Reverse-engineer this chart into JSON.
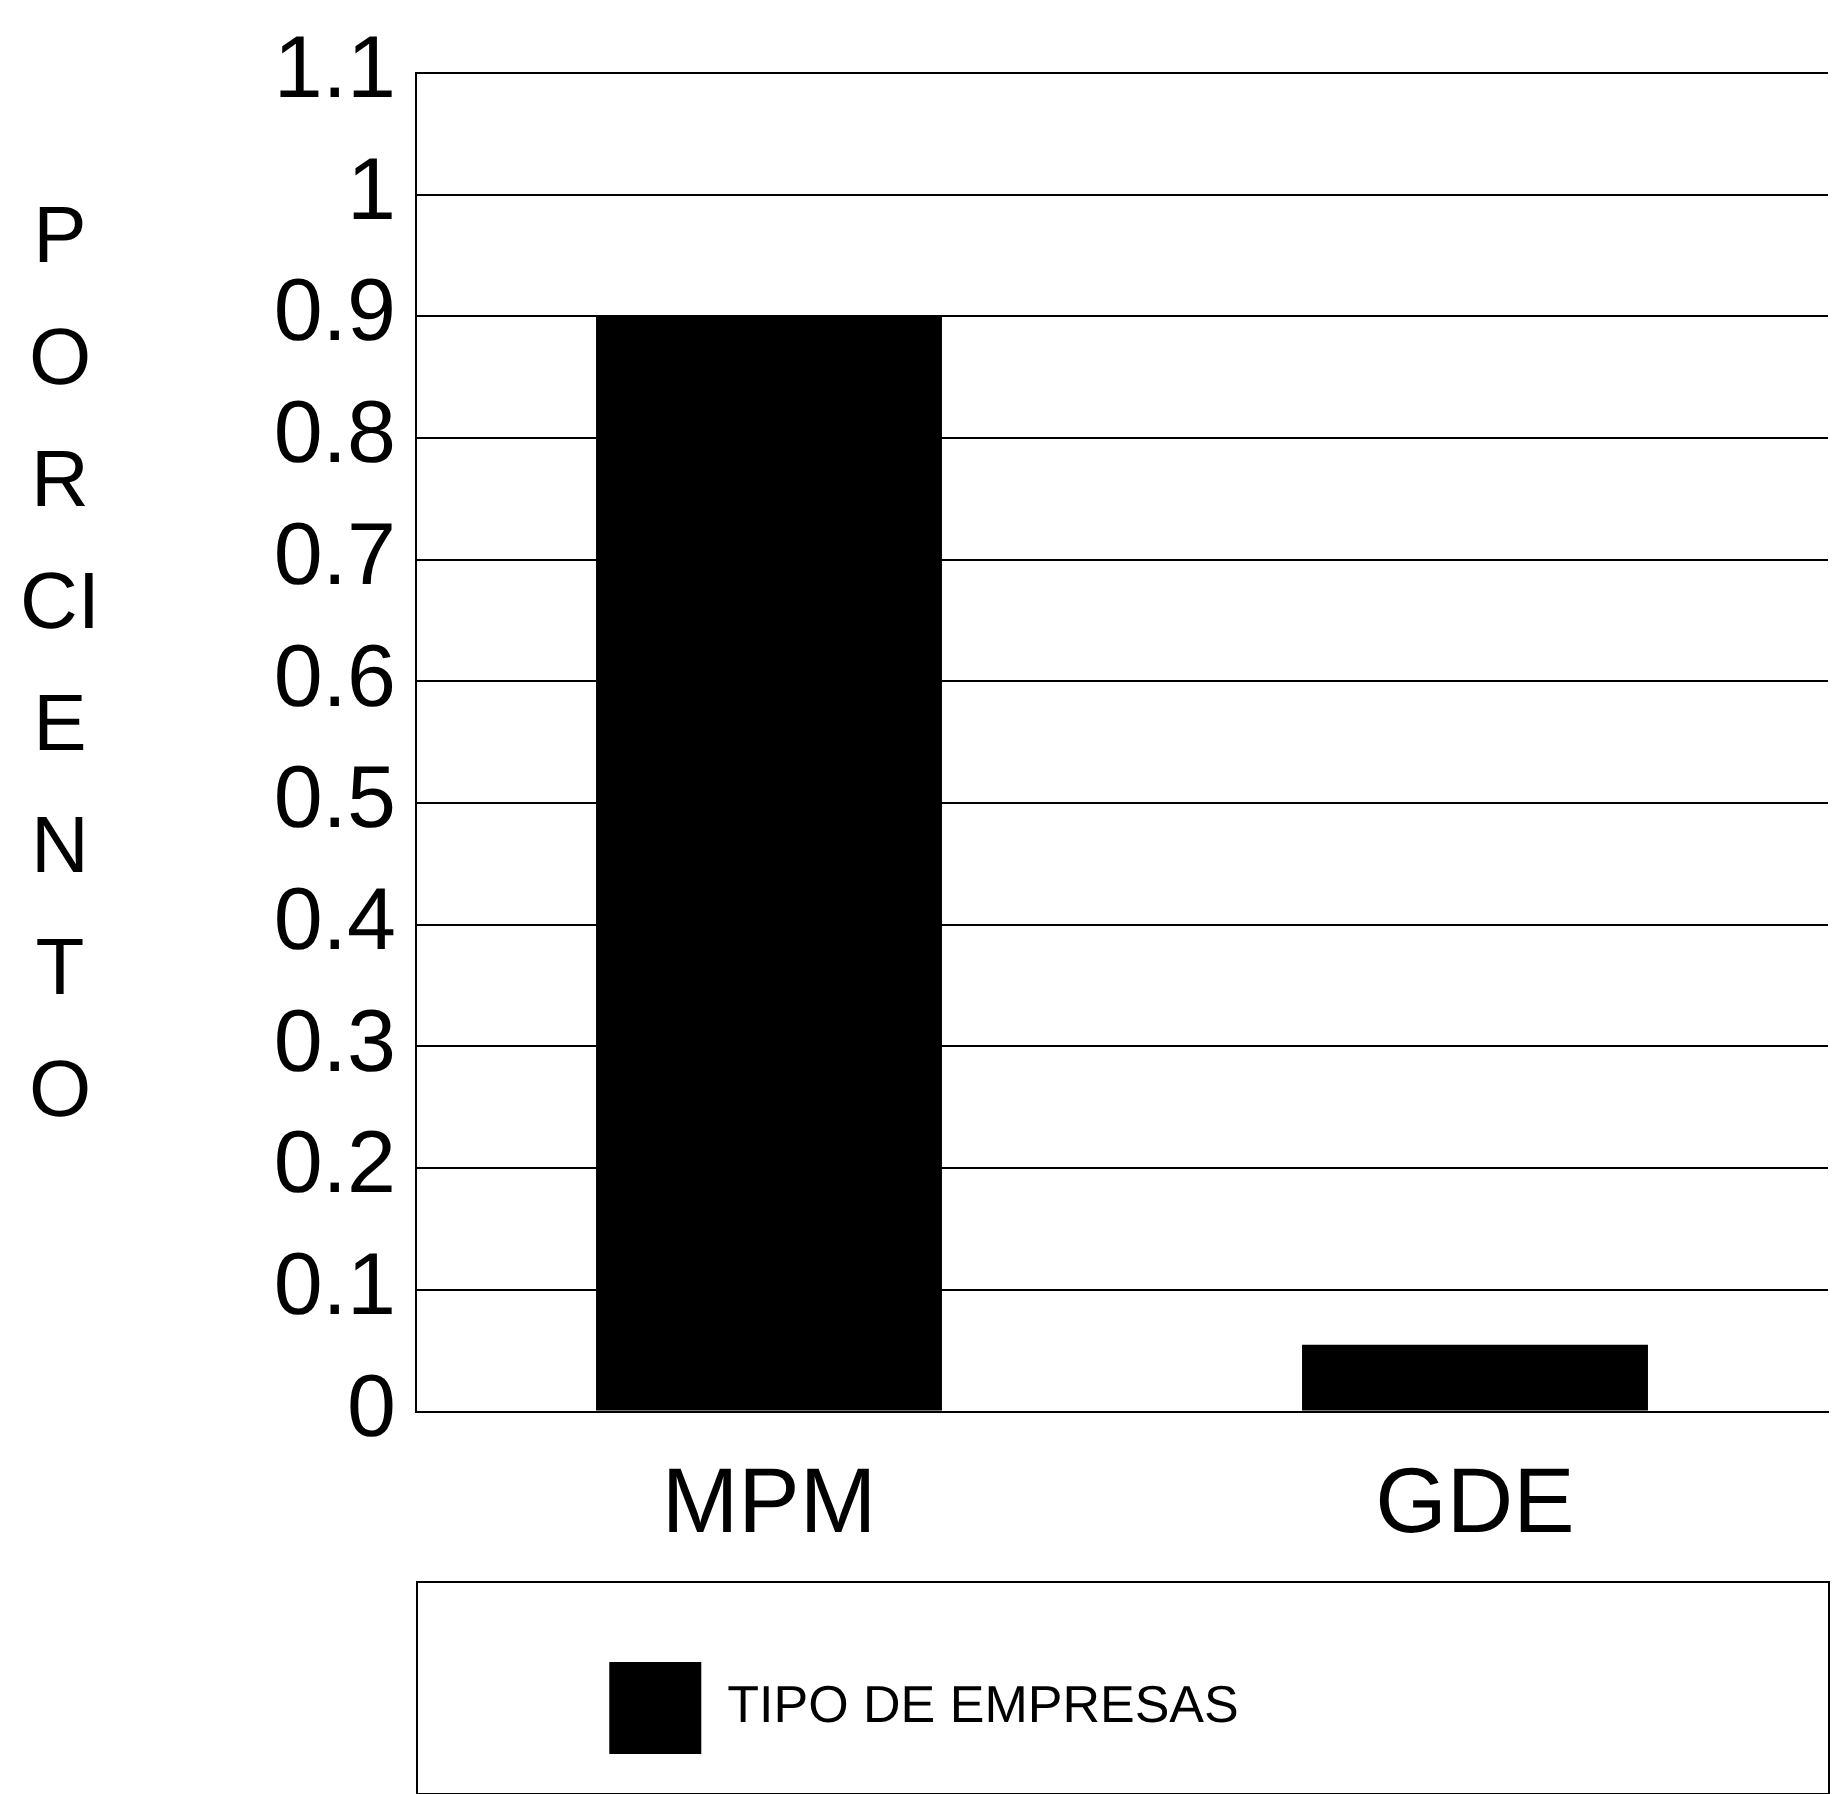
{
  "chart_data": {
    "type": "bar",
    "ylabel": "PORCIENTO",
    "categories": [
      "MPM",
      "GDE"
    ],
    "series": [
      {
        "name": "TIPO DE EMPRESAS",
        "color": "#000000",
        "values": [
          0.9,
          0.055
        ]
      }
    ],
    "ylim": [
      0,
      1.1
    ],
    "yticks": [
      0,
      0.1,
      0.2,
      0.3,
      0.4,
      0.5,
      0.6,
      0.7,
      0.8,
      0.9,
      1,
      1.1
    ],
    "grid": "y",
    "legend": "bottom"
  }
}
